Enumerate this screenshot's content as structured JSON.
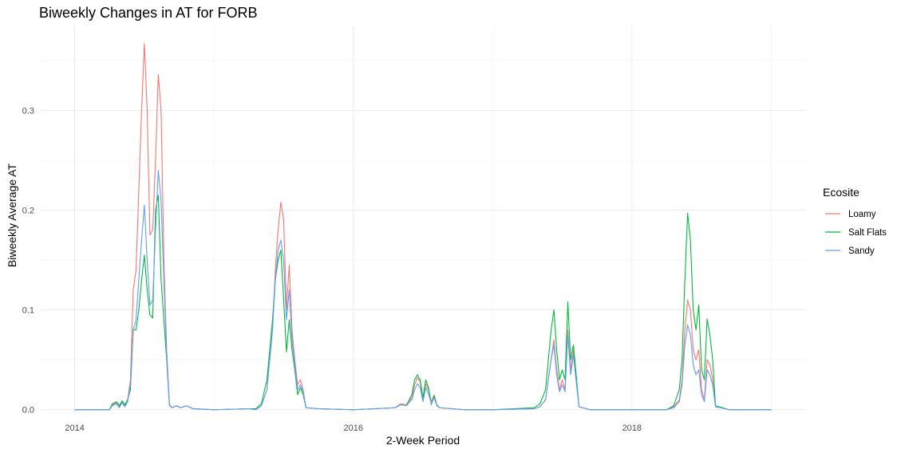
{
  "chart_data": {
    "type": "line",
    "title": "Biweekly Changes in AT for FORB",
    "xlabel": "2-Week Period",
    "ylabel": "Biweekly Average AT",
    "xlim": [
      2013.75,
      2019.25
    ],
    "ylim": [
      -0.005,
      0.385
    ],
    "x_ticks": [
      2014,
      2016,
      2018
    ],
    "x_tick_labels": [
      "2014",
      "2016",
      "2018"
    ],
    "y_ticks": [
      0.0,
      0.1,
      0.2,
      0.3
    ],
    "y_tick_labels": [
      "0.0",
      "0.1",
      "0.2",
      "0.3"
    ],
    "grid": true,
    "legend": {
      "title": "Ecosite",
      "position": "right"
    },
    "series": [
      {
        "name": "Loamy",
        "color": "#F8766D",
        "points": [
          [
            2014.0,
            0.0
          ],
          [
            2014.25,
            0.0
          ],
          [
            2014.27,
            0.005
          ],
          [
            2014.3,
            0.007
          ],
          [
            2014.32,
            0.003
          ],
          [
            2014.34,
            0.008
          ],
          [
            2014.36,
            0.004
          ],
          [
            2014.38,
            0.01
          ],
          [
            2014.4,
            0.03
          ],
          [
            2014.42,
            0.12
          ],
          [
            2014.44,
            0.14
          ],
          [
            2014.46,
            0.22
          ],
          [
            2014.48,
            0.3
          ],
          [
            2014.5,
            0.367
          ],
          [
            2014.52,
            0.3
          ],
          [
            2014.54,
            0.175
          ],
          [
            2014.56,
            0.18
          ],
          [
            2014.58,
            0.25
          ],
          [
            2014.6,
            0.336
          ],
          [
            2014.62,
            0.3
          ],
          [
            2014.64,
            0.15
          ],
          [
            2014.66,
            0.06
          ],
          [
            2014.68,
            0.005
          ],
          [
            2014.7,
            0.002
          ],
          [
            2014.73,
            0.004
          ],
          [
            2014.76,
            0.002
          ],
          [
            2014.8,
            0.004
          ],
          [
            2014.85,
            0.001
          ],
          [
            2015.0,
            0.0
          ],
          [
            2015.25,
            0.001
          ],
          [
            2015.3,
            0.0
          ],
          [
            2015.34,
            0.004
          ],
          [
            2015.38,
            0.02
          ],
          [
            2015.42,
            0.08
          ],
          [
            2015.44,
            0.14
          ],
          [
            2015.46,
            0.18
          ],
          [
            2015.48,
            0.208
          ],
          [
            2015.5,
            0.19
          ],
          [
            2015.52,
            0.1
          ],
          [
            2015.54,
            0.145
          ],
          [
            2015.56,
            0.08
          ],
          [
            2015.58,
            0.05
          ],
          [
            2015.6,
            0.025
          ],
          [
            2015.62,
            0.03
          ],
          [
            2015.64,
            0.02
          ],
          [
            2015.66,
            0.002
          ],
          [
            2015.75,
            0.001
          ],
          [
            2016.0,
            0.0
          ],
          [
            2016.3,
            0.002
          ],
          [
            2016.34,
            0.006
          ],
          [
            2016.38,
            0.005
          ],
          [
            2016.42,
            0.012
          ],
          [
            2016.44,
            0.025
          ],
          [
            2016.46,
            0.032
          ],
          [
            2016.48,
            0.028
          ],
          [
            2016.5,
            0.01
          ],
          [
            2016.52,
            0.026
          ],
          [
            2016.54,
            0.02
          ],
          [
            2016.56,
            0.008
          ],
          [
            2016.58,
            0.015
          ],
          [
            2016.6,
            0.005
          ],
          [
            2016.62,
            0.002
          ],
          [
            2016.8,
            0.0
          ],
          [
            2017.0,
            0.0
          ],
          [
            2017.3,
            0.001
          ],
          [
            2017.34,
            0.003
          ],
          [
            2017.38,
            0.01
          ],
          [
            2017.42,
            0.05
          ],
          [
            2017.44,
            0.07
          ],
          [
            2017.46,
            0.04
          ],
          [
            2017.48,
            0.02
          ],
          [
            2017.5,
            0.03
          ],
          [
            2017.52,
            0.02
          ],
          [
            2017.54,
            0.08
          ],
          [
            2017.56,
            0.04
          ],
          [
            2017.58,
            0.06
          ],
          [
            2017.6,
            0.03
          ],
          [
            2017.62,
            0.003
          ],
          [
            2017.7,
            0.0
          ],
          [
            2018.0,
            0.0
          ],
          [
            2018.25,
            0.0
          ],
          [
            2018.3,
            0.003
          ],
          [
            2018.34,
            0.01
          ],
          [
            2018.36,
            0.03
          ],
          [
            2018.38,
            0.08
          ],
          [
            2018.4,
            0.11
          ],
          [
            2018.42,
            0.1
          ],
          [
            2018.44,
            0.06
          ],
          [
            2018.46,
            0.05
          ],
          [
            2018.48,
            0.06
          ],
          [
            2018.5,
            0.02
          ],
          [
            2018.52,
            0.01
          ],
          [
            2018.54,
            0.05
          ],
          [
            2018.56,
            0.045
          ],
          [
            2018.58,
            0.03
          ],
          [
            2018.6,
            0.003
          ],
          [
            2018.7,
            0.0
          ],
          [
            2019.0,
            0.0
          ]
        ]
      },
      {
        "name": "Salt Flats",
        "color": "#00BA38",
        "points": [
          [
            2014.0,
            0.0
          ],
          [
            2014.25,
            0.0
          ],
          [
            2014.27,
            0.006
          ],
          [
            2014.3,
            0.008
          ],
          [
            2014.32,
            0.004
          ],
          [
            2014.34,
            0.009
          ],
          [
            2014.36,
            0.005
          ],
          [
            2014.38,
            0.01
          ],
          [
            2014.4,
            0.02
          ],
          [
            2014.42,
            0.08
          ],
          [
            2014.44,
            0.08
          ],
          [
            2014.46,
            0.1
          ],
          [
            2014.48,
            0.13
          ],
          [
            2014.5,
            0.155
          ],
          [
            2014.52,
            0.12
          ],
          [
            2014.54,
            0.095
          ],
          [
            2014.56,
            0.092
          ],
          [
            2014.58,
            0.2
          ],
          [
            2014.6,
            0.215
          ],
          [
            2014.62,
            0.13
          ],
          [
            2014.64,
            0.09
          ],
          [
            2014.66,
            0.05
          ],
          [
            2014.68,
            0.004
          ],
          [
            2014.7,
            0.002
          ],
          [
            2014.73,
            0.004
          ],
          [
            2014.76,
            0.002
          ],
          [
            2014.8,
            0.004
          ],
          [
            2014.85,
            0.001
          ],
          [
            2015.0,
            0.0
          ],
          [
            2015.25,
            0.001
          ],
          [
            2015.3,
            0.001
          ],
          [
            2015.34,
            0.006
          ],
          [
            2015.38,
            0.03
          ],
          [
            2015.42,
            0.09
          ],
          [
            2015.44,
            0.13
          ],
          [
            2015.46,
            0.15
          ],
          [
            2015.48,
            0.16
          ],
          [
            2015.5,
            0.11
          ],
          [
            2015.52,
            0.058
          ],
          [
            2015.54,
            0.09
          ],
          [
            2015.56,
            0.06
          ],
          [
            2015.58,
            0.04
          ],
          [
            2015.6,
            0.015
          ],
          [
            2015.62,
            0.022
          ],
          [
            2015.64,
            0.015
          ],
          [
            2015.66,
            0.002
          ],
          [
            2015.75,
            0.001
          ],
          [
            2016.0,
            0.0
          ],
          [
            2016.3,
            0.002
          ],
          [
            2016.34,
            0.005
          ],
          [
            2016.38,
            0.004
          ],
          [
            2016.42,
            0.015
          ],
          [
            2016.44,
            0.03
          ],
          [
            2016.46,
            0.035
          ],
          [
            2016.48,
            0.03
          ],
          [
            2016.5,
            0.012
          ],
          [
            2016.52,
            0.03
          ],
          [
            2016.54,
            0.022
          ],
          [
            2016.56,
            0.005
          ],
          [
            2016.58,
            0.014
          ],
          [
            2016.6,
            0.004
          ],
          [
            2016.62,
            0.002
          ],
          [
            2016.8,
            0.0
          ],
          [
            2017.0,
            0.0
          ],
          [
            2017.3,
            0.002
          ],
          [
            2017.34,
            0.006
          ],
          [
            2017.38,
            0.02
          ],
          [
            2017.42,
            0.08
          ],
          [
            2017.44,
            0.1
          ],
          [
            2017.46,
            0.06
          ],
          [
            2017.48,
            0.03
          ],
          [
            2017.5,
            0.04
          ],
          [
            2017.52,
            0.03
          ],
          [
            2017.54,
            0.108
          ],
          [
            2017.56,
            0.05
          ],
          [
            2017.58,
            0.065
          ],
          [
            2017.6,
            0.035
          ],
          [
            2017.62,
            0.003
          ],
          [
            2017.7,
            0.0
          ],
          [
            2018.0,
            0.0
          ],
          [
            2018.25,
            0.0
          ],
          [
            2018.3,
            0.004
          ],
          [
            2018.34,
            0.02
          ],
          [
            2018.36,
            0.05
          ],
          [
            2018.38,
            0.13
          ],
          [
            2018.4,
            0.197
          ],
          [
            2018.42,
            0.17
          ],
          [
            2018.44,
            0.1
          ],
          [
            2018.46,
            0.08
          ],
          [
            2018.48,
            0.105
          ],
          [
            2018.5,
            0.04
          ],
          [
            2018.52,
            0.03
          ],
          [
            2018.54,
            0.091
          ],
          [
            2018.56,
            0.075
          ],
          [
            2018.58,
            0.05
          ],
          [
            2018.6,
            0.004
          ],
          [
            2018.7,
            0.0
          ],
          [
            2019.0,
            0.0
          ]
        ]
      },
      {
        "name": "Sandy",
        "color": "#619CFF",
        "points": [
          [
            2014.0,
            0.0
          ],
          [
            2014.25,
            0.0
          ],
          [
            2014.27,
            0.004
          ],
          [
            2014.3,
            0.006
          ],
          [
            2014.32,
            0.002
          ],
          [
            2014.34,
            0.007
          ],
          [
            2014.36,
            0.003
          ],
          [
            2014.38,
            0.008
          ],
          [
            2014.4,
            0.025
          ],
          [
            2014.42,
            0.08
          ],
          [
            2014.44,
            0.09
          ],
          [
            2014.46,
            0.13
          ],
          [
            2014.48,
            0.17
          ],
          [
            2014.5,
            0.205
          ],
          [
            2014.52,
            0.15
          ],
          [
            2014.54,
            0.105
          ],
          [
            2014.56,
            0.11
          ],
          [
            2014.58,
            0.18
          ],
          [
            2014.6,
            0.24
          ],
          [
            2014.62,
            0.21
          ],
          [
            2014.64,
            0.13
          ],
          [
            2014.66,
            0.055
          ],
          [
            2014.68,
            0.004
          ],
          [
            2014.7,
            0.002
          ],
          [
            2014.73,
            0.004
          ],
          [
            2014.76,
            0.002
          ],
          [
            2014.8,
            0.004
          ],
          [
            2014.85,
            0.001
          ],
          [
            2015.0,
            0.0
          ],
          [
            2015.25,
            0.001
          ],
          [
            2015.3,
            0.0
          ],
          [
            2015.34,
            0.004
          ],
          [
            2015.38,
            0.02
          ],
          [
            2015.42,
            0.08
          ],
          [
            2015.44,
            0.13
          ],
          [
            2015.46,
            0.16
          ],
          [
            2015.48,
            0.17
          ],
          [
            2015.5,
            0.15
          ],
          [
            2015.52,
            0.09
          ],
          [
            2015.54,
            0.12
          ],
          [
            2015.56,
            0.07
          ],
          [
            2015.58,
            0.045
          ],
          [
            2015.6,
            0.02
          ],
          [
            2015.62,
            0.025
          ],
          [
            2015.64,
            0.018
          ],
          [
            2015.66,
            0.002
          ],
          [
            2015.75,
            0.001
          ],
          [
            2016.0,
            0.0
          ],
          [
            2016.3,
            0.002
          ],
          [
            2016.34,
            0.005
          ],
          [
            2016.38,
            0.004
          ],
          [
            2016.42,
            0.01
          ],
          [
            2016.44,
            0.02
          ],
          [
            2016.46,
            0.026
          ],
          [
            2016.48,
            0.022
          ],
          [
            2016.5,
            0.008
          ],
          [
            2016.52,
            0.022
          ],
          [
            2016.54,
            0.016
          ],
          [
            2016.56,
            0.006
          ],
          [
            2016.58,
            0.012
          ],
          [
            2016.6,
            0.004
          ],
          [
            2016.62,
            0.002
          ],
          [
            2016.8,
            0.0
          ],
          [
            2017.0,
            0.0
          ],
          [
            2017.3,
            0.001
          ],
          [
            2017.34,
            0.003
          ],
          [
            2017.38,
            0.01
          ],
          [
            2017.42,
            0.05
          ],
          [
            2017.44,
            0.065
          ],
          [
            2017.46,
            0.035
          ],
          [
            2017.48,
            0.018
          ],
          [
            2017.5,
            0.025
          ],
          [
            2017.52,
            0.018
          ],
          [
            2017.54,
            0.075
          ],
          [
            2017.56,
            0.035
          ],
          [
            2017.58,
            0.055
          ],
          [
            2017.6,
            0.028
          ],
          [
            2017.62,
            0.003
          ],
          [
            2017.7,
            0.0
          ],
          [
            2018.0,
            0.0
          ],
          [
            2018.25,
            0.0
          ],
          [
            2018.3,
            0.002
          ],
          [
            2018.34,
            0.008
          ],
          [
            2018.36,
            0.025
          ],
          [
            2018.38,
            0.065
          ],
          [
            2018.4,
            0.085
          ],
          [
            2018.42,
            0.075
          ],
          [
            2018.44,
            0.045
          ],
          [
            2018.46,
            0.035
          ],
          [
            2018.48,
            0.04
          ],
          [
            2018.5,
            0.015
          ],
          [
            2018.52,
            0.008
          ],
          [
            2018.54,
            0.04
          ],
          [
            2018.56,
            0.035
          ],
          [
            2018.58,
            0.025
          ],
          [
            2018.6,
            0.003
          ],
          [
            2018.7,
            0.0
          ],
          [
            2019.0,
            0.0
          ]
        ]
      }
    ]
  }
}
